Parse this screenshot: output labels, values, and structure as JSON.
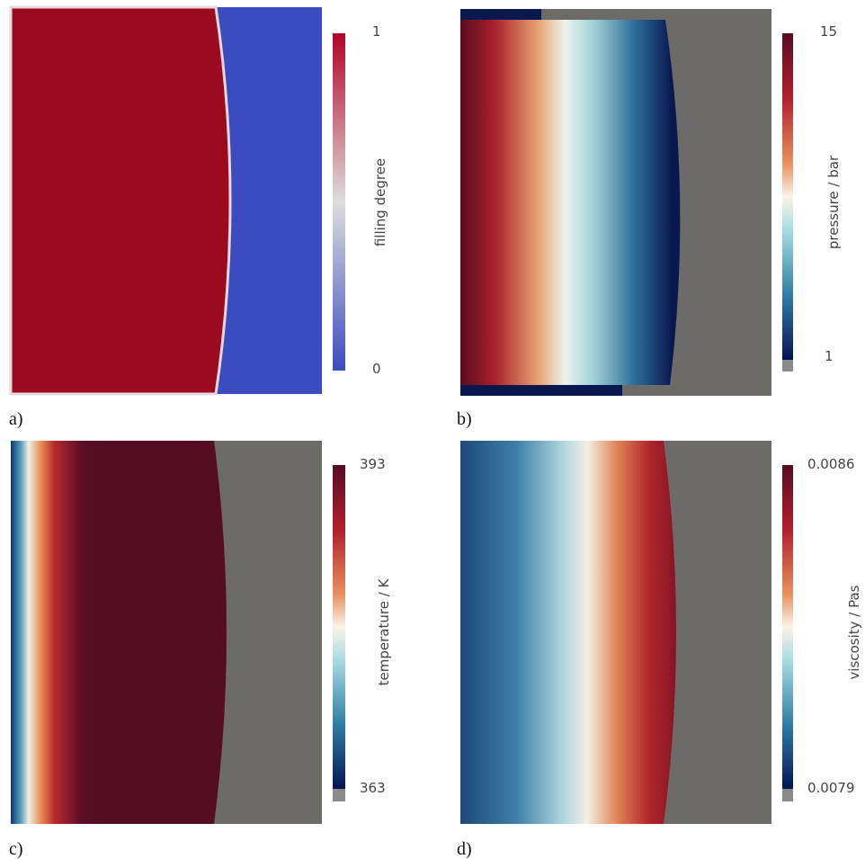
{
  "panels": [
    {
      "label": "a)",
      "colorbar": {
        "title": "filling degree",
        "max": 1,
        "min": 0
      }
    },
    {
      "label": "b)",
      "colorbar": {
        "title": "pressure / bar",
        "max": 15,
        "min": 1
      }
    },
    {
      "label": "c)",
      "colorbar": {
        "title": "temperature / K",
        "max": 393,
        "min": 363
      }
    },
    {
      "label": "d)",
      "colorbar": {
        "title": "viscosity / Pas",
        "max": 0.0086,
        "min": 0.0079
      }
    }
  ]
}
